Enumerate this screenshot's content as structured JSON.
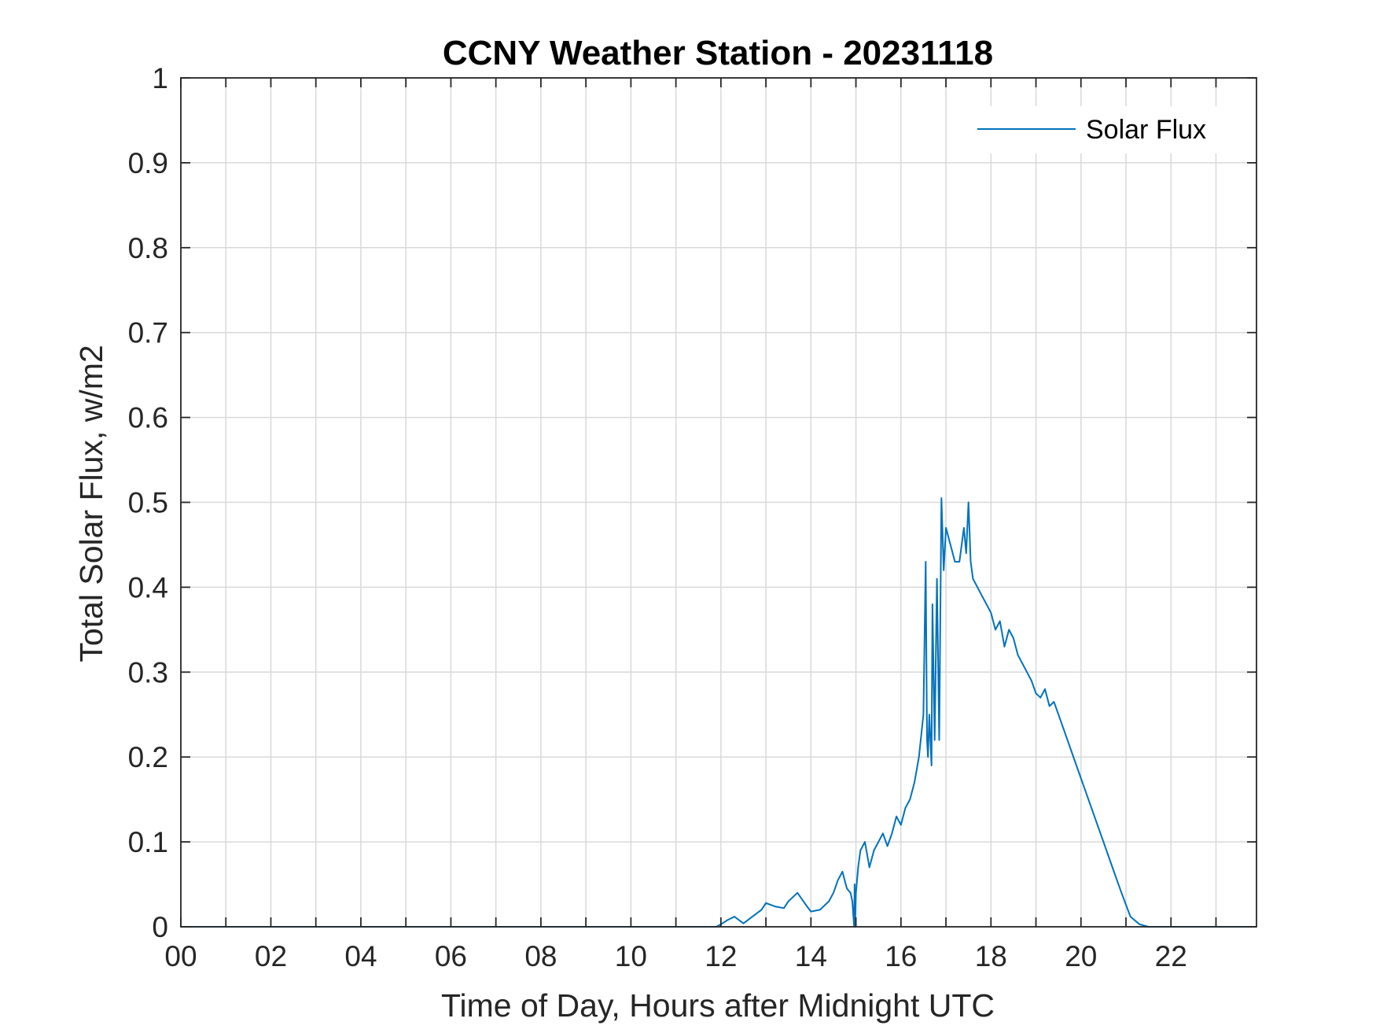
{
  "chart_data": {
    "type": "line",
    "title": "CCNY Weather Station - 20231118",
    "xlabel": "Time of Day, Hours after Midnight UTC",
    "ylabel": "Total Solar Flux, w/m2",
    "xlim": [
      0,
      23.9
    ],
    "ylim": [
      0,
      1
    ],
    "xticks": [
      0,
      2,
      4,
      6,
      8,
      10,
      12,
      14,
      16,
      18,
      20,
      22
    ],
    "xtick_labels": [
      "00",
      "02",
      "04",
      "06",
      "08",
      "10",
      "12",
      "14",
      "16",
      "18",
      "20",
      "22"
    ],
    "yticks": [
      0,
      0.1,
      0.2,
      0.3,
      0.4,
      0.5,
      0.6,
      0.7,
      0.8,
      0.9,
      1
    ],
    "ytick_labels": [
      "0",
      "0.1",
      "0.2",
      "0.3",
      "0.4",
      "0.5",
      "0.6",
      "0.7",
      "0.8",
      "0.9",
      "1"
    ],
    "grid": true,
    "legend": {
      "position": "top-right",
      "entries": [
        "Solar Flux"
      ]
    },
    "series": [
      {
        "name": "Solar Flux",
        "color": "#0072bd",
        "x": [
          0,
          11.9,
          12.0,
          12.15,
          12.3,
          12.5,
          12.7,
          12.9,
          13.0,
          13.2,
          13.4,
          13.5,
          13.7,
          13.9,
          14.0,
          14.2,
          14.4,
          14.5,
          14.6,
          14.7,
          14.8,
          14.88,
          14.92,
          14.96,
          14.97,
          14.98,
          15.0,
          15.05,
          15.1,
          15.2,
          15.3,
          15.4,
          15.5,
          15.6,
          15.7,
          15.8,
          15.9,
          16.0,
          16.1,
          16.2,
          16.3,
          16.4,
          16.5,
          16.55,
          16.58,
          16.6,
          16.63,
          16.68,
          16.7,
          16.75,
          16.8,
          16.85,
          16.9,
          16.95,
          17.0,
          17.1,
          17.2,
          17.3,
          17.4,
          17.45,
          17.5,
          17.55,
          17.6,
          17.7,
          17.8,
          17.9,
          18.0,
          18.1,
          18.2,
          18.3,
          18.4,
          18.5,
          18.6,
          18.7,
          18.8,
          18.9,
          19.0,
          19.1,
          19.2,
          19.3,
          19.4,
          19.5,
          19.7,
          19.9,
          20.1,
          20.3,
          20.5,
          20.7,
          20.9,
          21.1,
          21.3,
          21.5,
          21.7,
          21.85,
          22.0,
          23.9
        ],
        "y": [
          0,
          0,
          0.003,
          0.008,
          0.012,
          0.004,
          0.012,
          0.02,
          0.028,
          0.024,
          0.022,
          0.03,
          0.04,
          0.025,
          0.018,
          0.02,
          0.03,
          0.04,
          0.055,
          0.065,
          0.045,
          0.04,
          0.03,
          0.0,
          0.05,
          0.0,
          0.04,
          0.07,
          0.09,
          0.1,
          0.07,
          0.09,
          0.1,
          0.11,
          0.095,
          0.11,
          0.13,
          0.12,
          0.14,
          0.15,
          0.17,
          0.2,
          0.25,
          0.43,
          0.22,
          0.2,
          0.25,
          0.19,
          0.38,
          0.22,
          0.41,
          0.22,
          0.505,
          0.42,
          0.47,
          0.45,
          0.43,
          0.43,
          0.47,
          0.44,
          0.5,
          0.43,
          0.41,
          0.4,
          0.39,
          0.38,
          0.37,
          0.35,
          0.36,
          0.33,
          0.35,
          0.34,
          0.32,
          0.31,
          0.3,
          0.29,
          0.275,
          0.27,
          0.28,
          0.26,
          0.265,
          0.25,
          0.22,
          0.19,
          0.16,
          0.13,
          0.1,
          0.07,
          0.04,
          0.012,
          0.003,
          0.0,
          0.0,
          0.0,
          0.0,
          0.0
        ]
      }
    ]
  }
}
